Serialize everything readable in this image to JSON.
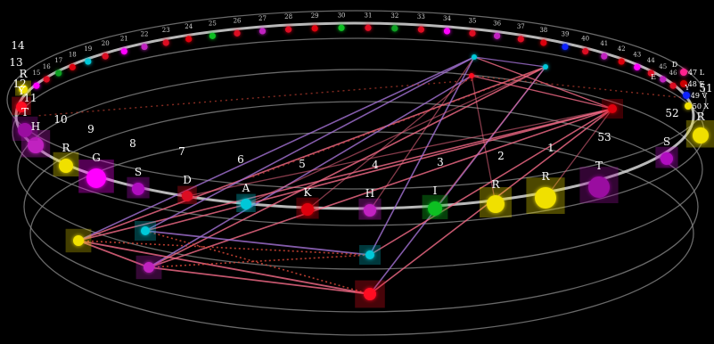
{
  "colors": {
    "background": "#000000",
    "ring": "#8c8c8c",
    "backbone": "#d8d8d8",
    "link_pink": "#f06a86",
    "link_violet": "#a070d0",
    "link_dotted": "#e04a3a"
  },
  "residue_colors": {
    "H": "#c020c0",
    "G": "#ff00ff",
    "S": "#b010c0",
    "D": "#dd1020",
    "A": "#00c8d8",
    "K": "#dd0010",
    "I": "#10c020",
    "R": "#f0e000",
    "T": "#9a10a0",
    "Y": "#ff1020",
    "V": "#1020ff",
    "X": "#f0e000",
    "E": "#cc0000",
    "L": "#ff2090",
    "F": "#10a020"
  },
  "front_residues": [
    {
      "number": "1",
      "letter": "R"
    },
    {
      "number": "2",
      "letter": "R"
    },
    {
      "number": "3",
      "letter": "I"
    },
    {
      "number": "4",
      "letter": "H"
    },
    {
      "number": "5",
      "letter": "K"
    },
    {
      "number": "6",
      "letter": "A"
    },
    {
      "number": "7",
      "letter": "D"
    },
    {
      "number": "8",
      "letter": "S"
    },
    {
      "number": "9",
      "letter": "G"
    },
    {
      "number": "10",
      "letter": "R"
    },
    {
      "number": "11",
      "letter": "H"
    },
    {
      "number": "12",
      "letter": "T"
    },
    {
      "number": "13",
      "letter": "Y"
    },
    {
      "number": "14",
      "letter": "R"
    },
    {
      "number": "51",
      "letter": "R"
    },
    {
      "number": "52",
      "letter": "S"
    },
    {
      "number": "53",
      "letter": "T"
    }
  ],
  "right_labels": [
    {
      "number": "47",
      "letter": "L"
    },
    {
      "number": "48",
      "letter": "E"
    },
    {
      "number": "49",
      "letter": "V"
    },
    {
      "number": "50",
      "letter": "X"
    }
  ],
  "extra_labels": [
    "D",
    "Y",
    "E"
  ],
  "back_numbers": [
    "15",
    "16",
    "17",
    "18",
    "19",
    "20",
    "21",
    "22",
    "23",
    "24",
    "25",
    "26",
    "27",
    "28",
    "29",
    "30",
    "31",
    "32",
    "33",
    "34",
    "35",
    "36",
    "37",
    "38",
    "39",
    "40",
    "41",
    "42",
    "43",
    "44",
    "45",
    "46"
  ]
}
